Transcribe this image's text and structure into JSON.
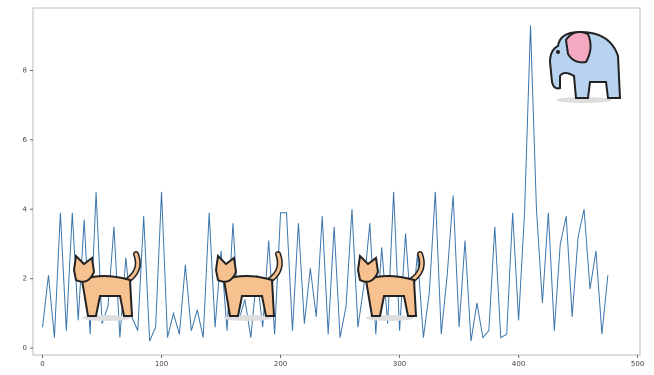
{
  "chart_data": {
    "type": "line",
    "x": [
      0,
      5,
      10,
      15,
      20,
      25,
      30,
      35,
      40,
      45,
      50,
      55,
      60,
      65,
      70,
      75,
      80,
      85,
      90,
      95,
      100,
      105,
      110,
      115,
      120,
      125,
      130,
      135,
      140,
      145,
      150,
      155,
      160,
      165,
      170,
      175,
      180,
      185,
      190,
      195,
      200,
      205,
      210,
      215,
      220,
      225,
      230,
      235,
      240,
      245,
      250,
      255,
      260,
      265,
      270,
      275,
      280,
      285,
      290,
      295,
      300,
      305,
      310,
      315,
      320,
      325,
      330,
      335,
      340,
      345,
      350,
      355,
      360,
      365,
      370,
      375,
      380,
      385,
      390,
      395,
      400,
      405,
      410,
      415,
      420,
      425,
      430,
      435,
      440,
      445,
      450,
      455,
      460,
      465,
      470,
      475
    ],
    "series": [
      {
        "color": "#3a76ab",
        "values": [
          0.6,
          2.1,
          0.3,
          3.9,
          0.5,
          3.9,
          0.8,
          3.7,
          0.4,
          4.5,
          0.7,
          1.2,
          3.5,
          0.3,
          2.6,
          0.9,
          0.5,
          3.8,
          0.2,
          0.6,
          4.5,
          0.3,
          1.0,
          0.4,
          2.4,
          0.5,
          1.1,
          0.3,
          3.9,
          0.6,
          2.8,
          0.5,
          3.6,
          0.8,
          1.4,
          0.3,
          2.1,
          0.6,
          3.1,
          0.4,
          3.9,
          3.9,
          0.5,
          3.6,
          0.7,
          2.3,
          0.9,
          3.8,
          0.4,
          3.5,
          0.3,
          1.2,
          4.0,
          0.6,
          1.8,
          3.6,
          0.4,
          2.9,
          0.7,
          4.5,
          0.5,
          3.3,
          0.9,
          2.7,
          0.3,
          1.6,
          4.5,
          0.4,
          2.1,
          4.4,
          0.6,
          3.1,
          0.2,
          1.3,
          0.3,
          0.5,
          3.5,
          0.3,
          0.4,
          3.9,
          0.8,
          3.9,
          9.3,
          4.0,
          1.3,
          3.9,
          0.5,
          3.0,
          3.8,
          0.9,
          3.2,
          4.0,
          1.7,
          2.8,
          0.4,
          2.1
        ]
      }
    ],
    "xlim": [
      -8,
      502
    ],
    "ylim": [
      -0.2,
      9.8
    ],
    "xticks": [
      0,
      100,
      200,
      300,
      400,
      500
    ],
    "yticks": [
      0,
      2,
      4,
      6,
      8
    ]
  }
}
